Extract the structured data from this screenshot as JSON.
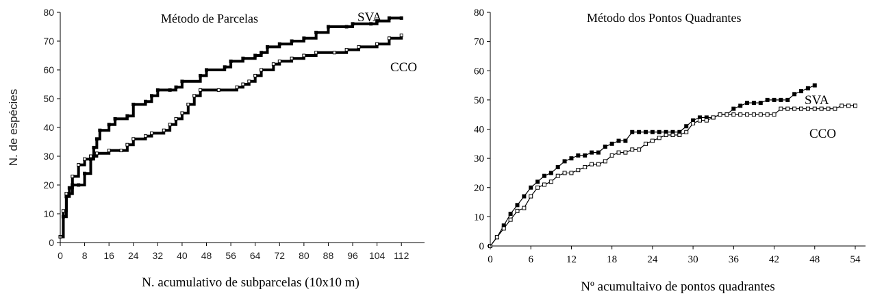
{
  "chart_data": [
    {
      "type": "line",
      "title": "Método de Parcelas",
      "xlabel": "N. acumulativo de subparcelas (10x10 m)",
      "ylabel": "N. de espécies",
      "xlim": [
        0,
        116
      ],
      "ylim": [
        0,
        80
      ],
      "xticks": [
        0,
        8,
        16,
        24,
        32,
        40,
        48,
        56,
        64,
        72,
        80,
        88,
        96,
        104,
        112
      ],
      "yticks": [
        0,
        10,
        20,
        30,
        40,
        50,
        60,
        70,
        80
      ],
      "grid": false,
      "series": [
        {
          "name": "SVA",
          "points": [
            [
              0,
              2
            ],
            [
              1,
              9
            ],
            [
              2,
              16
            ],
            [
              3,
              19
            ],
            [
              4,
              20
            ],
            [
              6,
              20
            ],
            [
              8,
              24
            ],
            [
              10,
              29
            ],
            [
              11,
              33
            ],
            [
              12,
              36
            ],
            [
              13,
              39
            ],
            [
              16,
              41
            ],
            [
              18,
              43
            ],
            [
              22,
              44
            ],
            [
              24,
              48
            ],
            [
              28,
              49
            ],
            [
              30,
              51
            ],
            [
              32,
              53
            ],
            [
              36,
              53
            ],
            [
              38,
              54
            ],
            [
              40,
              56
            ],
            [
              46,
              58
            ],
            [
              48,
              60
            ],
            [
              54,
              61
            ],
            [
              56,
              63
            ],
            [
              60,
              64
            ],
            [
              64,
              65
            ],
            [
              66,
              66
            ],
            [
              68,
              68
            ],
            [
              72,
              69
            ],
            [
              76,
              70
            ],
            [
              80,
              71
            ],
            [
              84,
              73
            ],
            [
              88,
              75
            ],
            [
              94,
              75
            ],
            [
              96,
              76
            ],
            [
              102,
              76
            ],
            [
              104,
              77
            ],
            [
              108,
              78
            ],
            [
              112,
              78
            ]
          ]
        },
        {
          "name": "CCO",
          "points": [
            [
              0,
              2
            ],
            [
              1,
              11
            ],
            [
              2,
              17
            ],
            [
              4,
              23
            ],
            [
              6,
              27
            ],
            [
              8,
              29
            ],
            [
              10,
              30
            ],
            [
              12,
              31
            ],
            [
              16,
              32
            ],
            [
              20,
              32
            ],
            [
              22,
              34
            ],
            [
              24,
              36
            ],
            [
              28,
              37
            ],
            [
              30,
              38
            ],
            [
              34,
              39
            ],
            [
              36,
              41
            ],
            [
              38,
              43
            ],
            [
              40,
              45
            ],
            [
              42,
              48
            ],
            [
              44,
              51
            ],
            [
              46,
              53
            ],
            [
              52,
              53
            ],
            [
              58,
              54
            ],
            [
              60,
              55
            ],
            [
              62,
              56
            ],
            [
              64,
              58
            ],
            [
              66,
              60
            ],
            [
              70,
              62
            ],
            [
              72,
              63
            ],
            [
              76,
              64
            ],
            [
              80,
              65
            ],
            [
              84,
              66
            ],
            [
              90,
              66
            ],
            [
              94,
              67
            ],
            [
              98,
              68
            ],
            [
              104,
              69
            ],
            [
              108,
              71
            ],
            [
              112,
              72
            ]
          ]
        }
      ],
      "annotations": [
        "SVA",
        "CCO"
      ]
    },
    {
      "type": "line",
      "title": "Método dos Pontos Quadrantes",
      "xlabel": "Nº acumultaivo de pontos quadrantes",
      "ylabel": "",
      "xlim": [
        0,
        54
      ],
      "ylim": [
        0,
        80
      ],
      "xticks": [
        0,
        6,
        12,
        18,
        24,
        30,
        36,
        42,
        48,
        54
      ],
      "yticks": [
        0,
        10,
        20,
        30,
        40,
        50,
        60,
        70,
        80
      ],
      "grid": false,
      "series": [
        {
          "name": "SVA",
          "points": [
            [
              0,
              0
            ],
            [
              1,
              3
            ],
            [
              2,
              7
            ],
            [
              3,
              11
            ],
            [
              4,
              14
            ],
            [
              5,
              17
            ],
            [
              6,
              20
            ],
            [
              7,
              22
            ],
            [
              8,
              24
            ],
            [
              9,
              25
            ],
            [
              10,
              27
            ],
            [
              11,
              29
            ],
            [
              12,
              30
            ],
            [
              13,
              31
            ],
            [
              14,
              31
            ],
            [
              15,
              32
            ],
            [
              16,
              32
            ],
            [
              17,
              34
            ],
            [
              18,
              35
            ],
            [
              19,
              36
            ],
            [
              20,
              36
            ],
            [
              21,
              39
            ],
            [
              22,
              39
            ],
            [
              23,
              39
            ],
            [
              24,
              39
            ],
            [
              25,
              39
            ],
            [
              26,
              39
            ],
            [
              27,
              39
            ],
            [
              28,
              39
            ],
            [
              29,
              41
            ],
            [
              30,
              43
            ],
            [
              31,
              44
            ],
            [
              32,
              44
            ],
            [
              33,
              44
            ],
            [
              34,
              45
            ],
            [
              35,
              45
            ],
            [
              36,
              47
            ],
            [
              37,
              48
            ],
            [
              38,
              49
            ],
            [
              39,
              49
            ],
            [
              40,
              49
            ],
            [
              41,
              50
            ],
            [
              42,
              50
            ],
            [
              43,
              50
            ],
            [
              44,
              50
            ],
            [
              45,
              52
            ],
            [
              46,
              53
            ],
            [
              47,
              54
            ],
            [
              48,
              55
            ]
          ]
        },
        {
          "name": "CCO",
          "points": [
            [
              0,
              0
            ],
            [
              1,
              3
            ],
            [
              2,
              6
            ],
            [
              3,
              9
            ],
            [
              4,
              12
            ],
            [
              5,
              13
            ],
            [
              6,
              17
            ],
            [
              7,
              20
            ],
            [
              8,
              21
            ],
            [
              9,
              22
            ],
            [
              10,
              24
            ],
            [
              11,
              25
            ],
            [
              12,
              25
            ],
            [
              13,
              26
            ],
            [
              14,
              27
            ],
            [
              15,
              28
            ],
            [
              16,
              28
            ],
            [
              17,
              29
            ],
            [
              18,
              31
            ],
            [
              19,
              32
            ],
            [
              20,
              32
            ],
            [
              21,
              33
            ],
            [
              22,
              33
            ],
            [
              23,
              35
            ],
            [
              24,
              36
            ],
            [
              25,
              37
            ],
            [
              26,
              38
            ],
            [
              27,
              38
            ],
            [
              28,
              38
            ],
            [
              29,
              39
            ],
            [
              30,
              42
            ],
            [
              31,
              43
            ],
            [
              32,
              43
            ],
            [
              33,
              44
            ],
            [
              34,
              45
            ],
            [
              35,
              45
            ],
            [
              36,
              45
            ],
            [
              37,
              45
            ],
            [
              38,
              45
            ],
            [
              39,
              45
            ],
            [
              40,
              45
            ],
            [
              41,
              45
            ],
            [
              42,
              45
            ],
            [
              43,
              47
            ],
            [
              44,
              47
            ],
            [
              45,
              47
            ],
            [
              46,
              47
            ],
            [
              47,
              47
            ],
            [
              48,
              47
            ],
            [
              49,
              47
            ],
            [
              50,
              47
            ],
            [
              51,
              47
            ],
            [
              52,
              48
            ],
            [
              53,
              48
            ],
            [
              54,
              48
            ]
          ]
        }
      ],
      "annotations": [
        "SVA",
        "CCO"
      ]
    }
  ]
}
